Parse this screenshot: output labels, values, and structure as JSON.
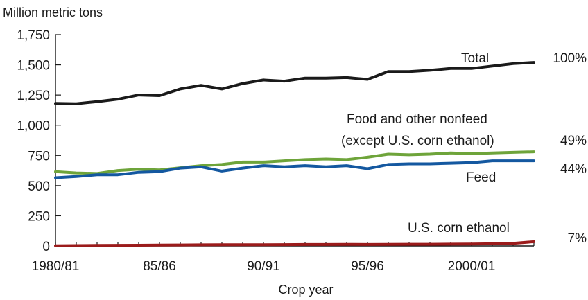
{
  "chart_data": {
    "type": "line",
    "ylabel": "Million metric tons",
    "xlabel": "Crop year",
    "ylim": [
      0,
      1750
    ],
    "y_ticks": [
      "0",
      "250",
      "500",
      "750",
      "1,000",
      "1,250",
      "1,500",
      "1,750"
    ],
    "y_tick_values": [
      0,
      250,
      500,
      750,
      1000,
      1250,
      1500,
      1750
    ],
    "x_tick_labels": [
      "1980/81",
      "85/86",
      "90/91",
      "95/96",
      "2000/01"
    ],
    "x_tick_index": [
      0,
      5,
      10,
      15,
      20
    ],
    "x": [
      "1980/81",
      "1981/82",
      "1982/83",
      "1983/84",
      "1984/85",
      "1985/86",
      "1986/87",
      "1987/88",
      "1988/89",
      "1989/90",
      "1990/91",
      "1991/92",
      "1992/93",
      "1993/94",
      "1994/95",
      "1995/96",
      "1996/97",
      "1997/98",
      "1998/99",
      "1999/2000",
      "2000/01",
      "2001/02",
      "2002/03",
      "2003/04"
    ],
    "grid": false,
    "series": [
      {
        "name": "Total",
        "share": "100%",
        "color": "#1a1a1a",
        "values": [
          1180,
          1178,
          1195,
          1215,
          1250,
          1245,
          1300,
          1330,
          1300,
          1345,
          1375,
          1365,
          1390,
          1390,
          1395,
          1380,
          1445,
          1445,
          1455,
          1470,
          1470,
          1490,
          1510,
          1520
        ]
      },
      {
        "name": "Food and other nonfeed (except U.S. corn ethanol)",
        "label_lines": [
          "Food and other nonfeed",
          "(except U.S. corn ethanol)"
        ],
        "share": "49%",
        "color": "#6ea43a",
        "values": [
          615,
          605,
          600,
          625,
          635,
          630,
          648,
          665,
          675,
          695,
          695,
          705,
          715,
          720,
          715,
          735,
          760,
          755,
          760,
          770,
          765,
          770,
          775,
          780
        ]
      },
      {
        "name": "Feed",
        "share": "44%",
        "color": "#1458a0",
        "values": [
          565,
          575,
          590,
          590,
          610,
          615,
          645,
          655,
          620,
          645,
          665,
          655,
          665,
          655,
          665,
          640,
          675,
          680,
          680,
          685,
          690,
          705,
          705,
          705
        ]
      },
      {
        "name": "U.S. corn ethanol",
        "share": "7%",
        "color": "#9b1b1b",
        "values": [
          2,
          3,
          4,
          5,
          6,
          7,
          8,
          9,
          10,
          10,
          10,
          11,
          12,
          12,
          13,
          12,
          13,
          14,
          14,
          15,
          16,
          18,
          22,
          35
        ]
      }
    ]
  }
}
